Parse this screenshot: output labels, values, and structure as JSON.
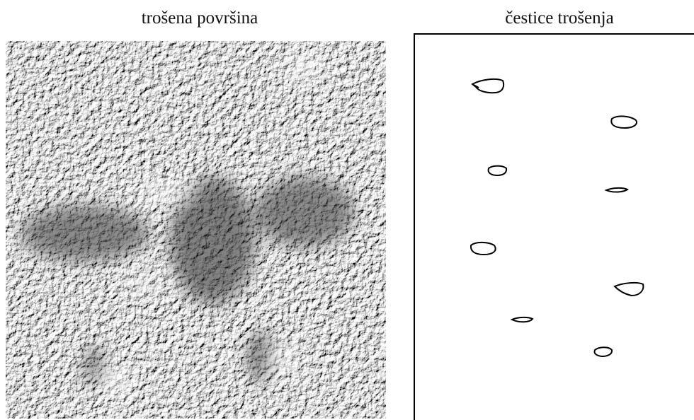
{
  "panels": [
    {
      "title": "trošena površina"
    },
    {
      "title": "čestice trošenja"
    }
  ]
}
